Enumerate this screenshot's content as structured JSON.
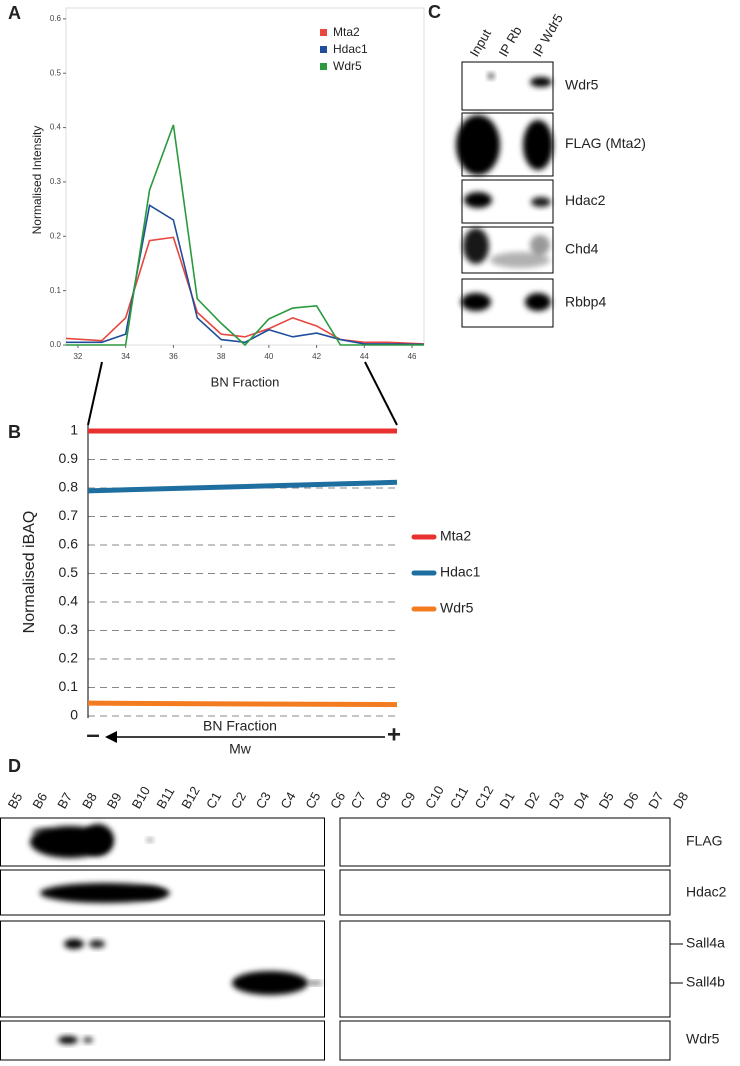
{
  "chart_data": [
    {
      "label": "A",
      "type": "line",
      "x_label": "BN Fraction",
      "y_label": "Normalised Intensity",
      "x": [
        31.5,
        33,
        34,
        35,
        36,
        37,
        38,
        39,
        40,
        41,
        42,
        43,
        44,
        45,
        46.5
      ],
      "series": [
        {
          "name": "Mta2",
          "color": "#e8463f",
          "values": [
            0.012,
            0.008,
            0.05,
            0.192,
            0.198,
            0.06,
            0.02,
            0.015,
            0.03,
            0.05,
            0.035,
            0.01,
            0.005,
            0.005,
            0.002
          ]
        },
        {
          "name": "Hdac1",
          "color": "#1f4e9c",
          "values": [
            0.005,
            0.005,
            0.02,
            0.257,
            0.23,
            0.05,
            0.01,
            0.005,
            0.028,
            0.015,
            0.022,
            0.01,
            0.002,
            0.002,
            0.001
          ]
        },
        {
          "name": "Wdr5",
          "color": "#2a9a3e",
          "values": [
            0,
            0,
            0,
            0.285,
            0.405,
            0.085,
            0.04,
            0,
            0.048,
            0.068,
            0.072,
            0,
            0,
            0,
            0
          ]
        }
      ],
      "xlim": [
        31.5,
        46.5
      ],
      "xticks": [
        32,
        34,
        36,
        38,
        40,
        42,
        44,
        46
      ],
      "ylim": [
        0,
        0.62
      ],
      "yticks": [
        {
          "value": 0,
          "label": "0.0"
        },
        {
          "value": 0.1,
          "label": "0.1"
        },
        {
          "value": 0.2,
          "label": "0.2"
        },
        {
          "value": 0.3,
          "label": "0.3"
        },
        {
          "value": 0.4,
          "label": "0.4"
        },
        {
          "value": 0.5,
          "label": "0.5"
        },
        {
          "value": 0.6,
          "label": "0.6"
        }
      ],
      "grid": false
    },
    {
      "label": "B",
      "type": "line",
      "x_label": "BN Fraction",
      "direction_label": "Mw",
      "left_end": "–",
      "right_end": "+",
      "y_label": "Normalised iBAQ",
      "categories": [
        null,
        null
      ],
      "series": [
        {
          "name": "Mta2",
          "color": "#e8302e",
          "values": [
            1,
            1
          ]
        },
        {
          "name": "Hdac1",
          "color": "#1e6fa0",
          "values": [
            0.79,
            0.82
          ]
        },
        {
          "name": "Wdr5",
          "color": "#f47c20",
          "values": [
            0.045,
            0.04
          ]
        }
      ],
      "ylim": [
        0,
        1
      ],
      "yticks": [
        0,
        0.1,
        0.2,
        0.3,
        0.4,
        0.5,
        0.6,
        0.7,
        0.8,
        0.9,
        1
      ],
      "grid": true
    }
  ],
  "blot_c": {
    "label": "C",
    "lanes": [
      "Input",
      "IP Rb",
      "IP Wdr5"
    ],
    "rows": [
      "Wdr5",
      "FLAG (Mta2)",
      "Hdac2",
      "Chd4",
      "Rbbp4"
    ]
  },
  "blot_d": {
    "label": "D",
    "lanes_left": [
      "B5",
      "B6",
      "B7",
      "B8",
      "B9",
      "B10",
      "B11",
      "B12",
      "C1",
      "C2",
      "C3",
      "C4",
      "C5",
      "C6"
    ],
    "lanes_right": [
      "C7",
      "C8",
      "C9",
      "C10",
      "C11",
      "C12",
      "D1",
      "D2",
      "D3",
      "D4",
      "D5",
      "D6",
      "D7",
      "D8"
    ],
    "rows": [
      "FLAG",
      "Hdac2",
      "Sall4a",
      "Sall4b",
      "Wdr5"
    ]
  }
}
